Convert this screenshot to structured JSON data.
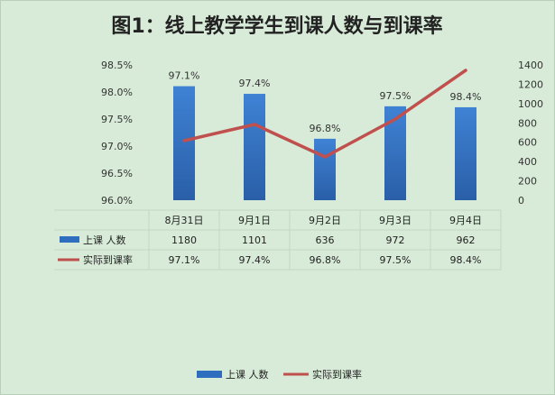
{
  "chart_data": {
    "type": "bar+line",
    "title": "图1：线上教学学生到课人数与到课率",
    "categories": [
      "8月31日",
      "9月1日",
      "9月2日",
      "9月3日",
      "9月4日"
    ],
    "series": [
      {
        "name": "上课 人数",
        "kind": "bar",
        "axis": "right",
        "values": [
          1180,
          1101,
          636,
          972,
          962
        ],
        "color": "#2f6ebe",
        "value_labels": [
          "1180",
          "1101",
          "636",
          "972",
          "962"
        ]
      },
      {
        "name": "实际到课率",
        "kind": "line",
        "axis": "left",
        "values": [
          97.1,
          97.4,
          96.8,
          97.5,
          98.4
        ],
        "color": "#c0504d",
        "value_labels": [
          "97.1%",
          "97.4%",
          "96.8%",
          "97.5%",
          "98.4%"
        ]
      }
    ],
    "left_axis": {
      "ylim": [
        96.0,
        98.5
      ],
      "ticks": [
        "96.0%",
        "96.5%",
        "97.0%",
        "97.5%",
        "98.0%",
        "98.5%"
      ],
      "tick_values": [
        96.0,
        96.5,
        97.0,
        97.5,
        98.0,
        98.5
      ]
    },
    "right_axis": {
      "ylim": [
        0,
        1400
      ],
      "ticks": [
        "0",
        "200",
        "400",
        "600",
        "800",
        "1000",
        "1200",
        "1400"
      ],
      "tick_values": [
        0,
        200,
        400,
        600,
        800,
        1000,
        1200,
        1400
      ]
    },
    "bar_top_labels": [
      "97.1%",
      "97.4%",
      "96.8%",
      "97.5%",
      "98.4%"
    ],
    "legend": {
      "position": "bottom",
      "items": [
        "上课 人数",
        "实际到课率"
      ]
    },
    "grid": false
  }
}
